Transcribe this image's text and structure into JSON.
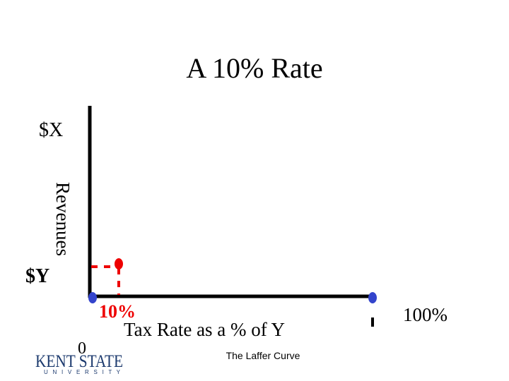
{
  "slide": {
    "title": "A 10% Rate",
    "y_axis": {
      "top_label": "$X",
      "label": "Revenues",
      "point_label": "$Y"
    },
    "x_axis": {
      "point_label": "10%",
      "label": "Tax Rate as a % of Y",
      "origin_label": "0",
      "end_label": "100%"
    },
    "footer": "The Laffer Curve",
    "logo": {
      "name": "KENT STATE",
      "sub": "U N I V E R S I T Y"
    }
  }
}
